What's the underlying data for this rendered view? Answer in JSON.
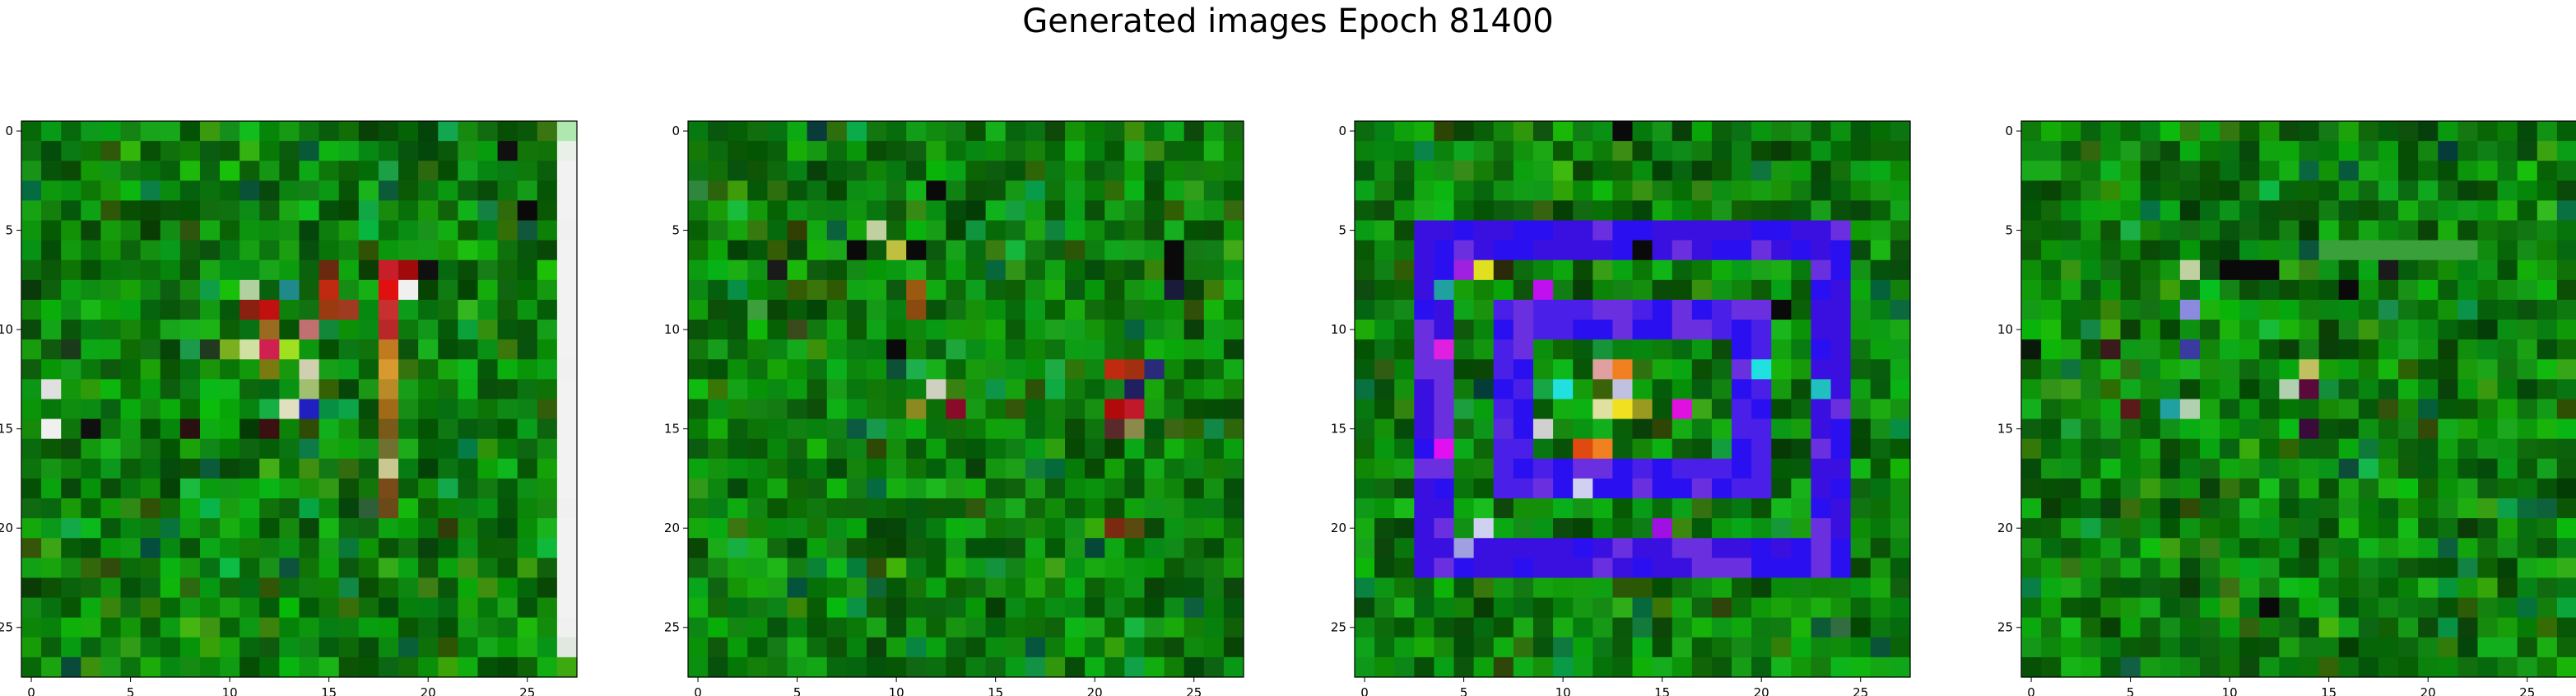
{
  "figure": {
    "title": "Generated images Epoch 81400"
  },
  "chart_data": [
    {
      "type": "heatmap",
      "title": "",
      "xlabel": "",
      "ylabel": "",
      "grid_size": [
        28,
        28
      ],
      "xlim": [
        -0.5,
        27.5
      ],
      "ylim": [
        27.5,
        -0.5
      ],
      "x_ticks": [
        0,
        5,
        10,
        15,
        20,
        25
      ],
      "y_ticks": [
        0,
        5,
        10,
        15,
        20,
        25
      ],
      "grid": false,
      "background": "#127a12",
      "pixels": [
        {
          "x": 27,
          "y": 0,
          "color": "#aee8ae"
        },
        {
          "x": 27,
          "y": 1,
          "color": "#e8f0e8"
        },
        {
          "x": 27,
          "y": 2,
          "color": "#f2f2f2"
        },
        {
          "x": 27,
          "y": 3,
          "color": "#f2f2f2"
        },
        {
          "x": 27,
          "y": 4,
          "color": "#f2f2f2"
        },
        {
          "x": 27,
          "y": 5,
          "color": "#f0f0f0"
        },
        {
          "x": 27,
          "y": 6,
          "color": "#f2f2f2"
        },
        {
          "x": 27,
          "y": 7,
          "color": "#f2f2f2"
        },
        {
          "x": 27,
          "y": 8,
          "color": "#f2f2f2"
        },
        {
          "x": 27,
          "y": 9,
          "color": "#f2f2f2"
        },
        {
          "x": 27,
          "y": 10,
          "color": "#f2f2f2"
        },
        {
          "x": 27,
          "y": 11,
          "color": "#f2f2f2"
        },
        {
          "x": 27,
          "y": 12,
          "color": "#f0f0f0"
        },
        {
          "x": 27,
          "y": 13,
          "color": "#f2f2f2"
        },
        {
          "x": 27,
          "y": 14,
          "color": "#f2f2f2"
        },
        {
          "x": 27,
          "y": 15,
          "color": "#f2f2f2"
        },
        {
          "x": 27,
          "y": 16,
          "color": "#f2f2f2"
        },
        {
          "x": 27,
          "y": 17,
          "color": "#f2f2f2"
        },
        {
          "x": 27,
          "y": 18,
          "color": "#f2f2f2"
        },
        {
          "x": 27,
          "y": 19,
          "color": "#f0f0f0"
        },
        {
          "x": 27,
          "y": 20,
          "color": "#f2f2f2"
        },
        {
          "x": 27,
          "y": 21,
          "color": "#f2f2f2"
        },
        {
          "x": 27,
          "y": 22,
          "color": "#f2f2f2"
        },
        {
          "x": 27,
          "y": 23,
          "color": "#f2f2f2"
        },
        {
          "x": 27,
          "y": 24,
          "color": "#f2f2f2"
        },
        {
          "x": 27,
          "y": 25,
          "color": "#f0f0f0"
        },
        {
          "x": 27,
          "y": 26,
          "color": "#e0e8e0"
        },
        {
          "x": 18,
          "y": 7,
          "color": "#c81e2a"
        },
        {
          "x": 18,
          "y": 8,
          "color": "#e01010"
        },
        {
          "x": 18,
          "y": 9,
          "color": "#c83030"
        },
        {
          "x": 18,
          "y": 10,
          "color": "#b82828"
        },
        {
          "x": 18,
          "y": 11,
          "color": "#c07a20"
        },
        {
          "x": 18,
          "y": 12,
          "color": "#d89a30"
        },
        {
          "x": 18,
          "y": 13,
          "color": "#b88a28"
        },
        {
          "x": 18,
          "y": 14,
          "color": "#a06a18"
        },
        {
          "x": 18,
          "y": 15,
          "color": "#7a5a18"
        },
        {
          "x": 18,
          "y": 16,
          "color": "#707030"
        },
        {
          "x": 18,
          "y": 17,
          "color": "#c8c890"
        },
        {
          "x": 18,
          "y": 18,
          "color": "#7a4a18"
        },
        {
          "x": 18,
          "y": 19,
          "color": "#6a4a18"
        },
        {
          "x": 19,
          "y": 7,
          "color": "#a00a0a"
        },
        {
          "x": 19,
          "y": 8,
          "color": "#f0f0f0"
        },
        {
          "x": 20,
          "y": 7,
          "color": "#101010"
        },
        {
          "x": 12,
          "y": 9,
          "color": "#c01010"
        },
        {
          "x": 12,
          "y": 10,
          "color": "#9a6a20"
        },
        {
          "x": 12,
          "y": 11,
          "color": "#d02050"
        },
        {
          "x": 12,
          "y": 12,
          "color": "#7a7a10"
        },
        {
          "x": 11,
          "y": 9,
          "color": "#8a2010"
        },
        {
          "x": 13,
          "y": 8,
          "color": "#208a8a"
        },
        {
          "x": 13,
          "y": 11,
          "color": "#a0e020"
        },
        {
          "x": 14,
          "y": 10,
          "color": "#c07070"
        },
        {
          "x": 14,
          "y": 12,
          "color": "#d0d0b0"
        },
        {
          "x": 14,
          "y": 13,
          "color": "#a0c070"
        },
        {
          "x": 14,
          "y": 14,
          "color": "#2020c0"
        },
        {
          "x": 13,
          "y": 14,
          "color": "#e0e0c0"
        },
        {
          "x": 15,
          "y": 8,
          "color": "#c02a10"
        },
        {
          "x": 15,
          "y": 9,
          "color": "#9a3a10"
        },
        {
          "x": 16,
          "y": 9,
          "color": "#a03a20"
        },
        {
          "x": 15,
          "y": 7,
          "color": "#6a2a10"
        },
        {
          "x": 11,
          "y": 11,
          "color": "#d0e0a0"
        },
        {
          "x": 10,
          "y": 11,
          "color": "#7ab020"
        },
        {
          "x": 9,
          "y": 11,
          "color": "#203a20"
        },
        {
          "x": 8,
          "y": 11,
          "color": "#1a9a4a"
        },
        {
          "x": 1,
          "y": 13,
          "color": "#e0e0e0"
        },
        {
          "x": 3,
          "y": 15,
          "color": "#101010"
        },
        {
          "x": 1,
          "y": 15,
          "color": "#f0f0f0"
        },
        {
          "x": 8,
          "y": 15,
          "color": "#2a1010"
        },
        {
          "x": 12,
          "y": 15,
          "color": "#3a1010"
        },
        {
          "x": 24,
          "y": 1,
          "color": "#101010"
        },
        {
          "x": 25,
          "y": 4,
          "color": "#0a0a0a"
        },
        {
          "x": 0,
          "y": 8,
          "color": "#0a3a0a"
        },
        {
          "x": 2,
          "y": 11,
          "color": "#1a3a1a"
        },
        {
          "x": 11,
          "y": 8,
          "color": "#b0d0a0"
        }
      ]
    },
    {
      "type": "heatmap",
      "title": "",
      "xlabel": "",
      "ylabel": "",
      "grid_size": [
        28,
        28
      ],
      "xlim": [
        -0.5,
        27.5
      ],
      "ylim": [
        27.5,
        -0.5
      ],
      "x_ticks": [
        0,
        5,
        10,
        15,
        20,
        25
      ],
      "y_ticks": [
        0,
        5,
        10,
        15,
        20,
        25
      ],
      "grid": false,
      "background": "#127a12",
      "pixels": [
        {
          "x": 9,
          "y": 5,
          "color": "#c0d0a0"
        },
        {
          "x": 10,
          "y": 6,
          "color": "#c0c040"
        },
        {
          "x": 8,
          "y": 6,
          "color": "#0a0a0a"
        },
        {
          "x": 11,
          "y": 6,
          "color": "#0a0a0a"
        },
        {
          "x": 11,
          "y": 8,
          "color": "#9a5a10"
        },
        {
          "x": 11,
          "y": 9,
          "color": "#8a4a10"
        },
        {
          "x": 10,
          "y": 11,
          "color": "#0a0a0a"
        },
        {
          "x": 12,
          "y": 13,
          "color": "#d0d0c0"
        },
        {
          "x": 13,
          "y": 14,
          "color": "#8a0a2a"
        },
        {
          "x": 11,
          "y": 14,
          "color": "#8a8a20"
        },
        {
          "x": 21,
          "y": 12,
          "color": "#c02a10"
        },
        {
          "x": 22,
          "y": 12,
          "color": "#a03010"
        },
        {
          "x": 21,
          "y": 14,
          "color": "#b00a0a"
        },
        {
          "x": 22,
          "y": 14,
          "color": "#c01a2a"
        },
        {
          "x": 22,
          "y": 13,
          "color": "#202060"
        },
        {
          "x": 21,
          "y": 15,
          "color": "#5a2a2a"
        },
        {
          "x": 22,
          "y": 15,
          "color": "#8a8a4a"
        },
        {
          "x": 23,
          "y": 12,
          "color": "#2a2a7a"
        },
        {
          "x": 24,
          "y": 6,
          "color": "#0a0a0a"
        },
        {
          "x": 24,
          "y": 7,
          "color": "#0a0a0a"
        },
        {
          "x": 24,
          "y": 8,
          "color": "#1a1a3a"
        },
        {
          "x": 12,
          "y": 3,
          "color": "#0a0a0a"
        },
        {
          "x": 21,
          "y": 20,
          "color": "#7a2a10"
        },
        {
          "x": 22,
          "y": 20,
          "color": "#5a4a10"
        },
        {
          "x": 5,
          "y": 10,
          "color": "#3a4a1a"
        },
        {
          "x": 4,
          "y": 7,
          "color": "#1a1a1a"
        }
      ]
    },
    {
      "type": "heatmap",
      "title": "",
      "xlabel": "",
      "ylabel": "",
      "grid_size": [
        28,
        28
      ],
      "xlim": [
        -0.5,
        27.5
      ],
      "ylim": [
        27.5,
        -0.5
      ],
      "x_ticks": [
        0,
        5,
        10,
        15,
        20,
        25
      ],
      "y_ticks": [
        0,
        5,
        10,
        15,
        20,
        25
      ],
      "grid": false,
      "background": "#127a12",
      "blue_frames": [
        {
          "x0": 3,
          "y0": 5,
          "x1": 24,
          "y1": 22,
          "thickness": 2,
          "color": "#3a10e0"
        },
        {
          "x0": 7,
          "y0": 9,
          "x1": 20,
          "y1": 18,
          "thickness": 2,
          "color": "#4a20e8"
        }
      ],
      "pixels": [
        {
          "x": 6,
          "y": 7,
          "color": "#e0e020"
        },
        {
          "x": 7,
          "y": 7,
          "color": "#2a2a0a"
        },
        {
          "x": 5,
          "y": 7,
          "color": "#a020e0"
        },
        {
          "x": 4,
          "y": 8,
          "color": "#20a0a0"
        },
        {
          "x": 4,
          "y": 11,
          "color": "#e020e0"
        },
        {
          "x": 4,
          "y": 16,
          "color": "#e010f0"
        },
        {
          "x": 9,
          "y": 15,
          "color": "#d0d0d0"
        },
        {
          "x": 7,
          "y": 15,
          "color": "#5a2ae0"
        },
        {
          "x": 12,
          "y": 12,
          "color": "#e0a0a0"
        },
        {
          "x": 13,
          "y": 12,
          "color": "#f08020"
        },
        {
          "x": 12,
          "y": 14,
          "color": "#e0e0a0"
        },
        {
          "x": 13,
          "y": 14,
          "color": "#f0e020"
        },
        {
          "x": 12,
          "y": 16,
          "color": "#f08020"
        },
        {
          "x": 11,
          "y": 16,
          "color": "#e04a10"
        },
        {
          "x": 13,
          "y": 13,
          "color": "#c0c0e0"
        },
        {
          "x": 14,
          "y": 14,
          "color": "#9a9a20"
        },
        {
          "x": 10,
          "y": 13,
          "color": "#20e0e0"
        },
        {
          "x": 5,
          "y": 21,
          "color": "#a0a0e0"
        },
        {
          "x": 6,
          "y": 20,
          "color": "#d0d0f0"
        },
        {
          "x": 9,
          "y": 8,
          "color": "#c010f0"
        },
        {
          "x": 16,
          "y": 14,
          "color": "#e010e0"
        },
        {
          "x": 20,
          "y": 12,
          "color": "#20e0e0"
        },
        {
          "x": 23,
          "y": 13,
          "color": "#20c0c0"
        },
        {
          "x": 11,
          "y": 18,
          "color": "#d0d0f0"
        },
        {
          "x": 15,
          "y": 20,
          "color": "#a010e0"
        },
        {
          "x": 21,
          "y": 9,
          "color": "#0a0a0a"
        },
        {
          "x": 13,
          "y": 0,
          "color": "#0a0a0a"
        },
        {
          "x": 14,
          "y": 6,
          "color": "#0a0a0a"
        }
      ]
    },
    {
      "type": "heatmap",
      "title": "",
      "xlabel": "",
      "ylabel": "",
      "grid_size": [
        28,
        28
      ],
      "xlim": [
        -0.5,
        27.5
      ],
      "ylim": [
        27.5,
        -0.5
      ],
      "x_ticks": [
        0,
        5,
        10,
        15,
        20,
        25
      ],
      "y_ticks": [
        0,
        5,
        10,
        15,
        20,
        25
      ],
      "grid": false,
      "background": "#127a12",
      "pixels": [
        {
          "x": 8,
          "y": 7,
          "color": "#c0d0a0"
        },
        {
          "x": 10,
          "y": 7,
          "color": "#0a0a0a"
        },
        {
          "x": 11,
          "y": 7,
          "color": "#0a0a0a"
        },
        {
          "x": 12,
          "y": 7,
          "color": "#0a0a0a"
        },
        {
          "x": 8,
          "y": 9,
          "color": "#8a8ae0"
        },
        {
          "x": 8,
          "y": 11,
          "color": "#3a3aa0"
        },
        {
          "x": 8,
          "y": 14,
          "color": "#b0d0b0"
        },
        {
          "x": 7,
          "y": 14,
          "color": "#20a0a0"
        },
        {
          "x": 13,
          "y": 13,
          "color": "#b0d0b0"
        },
        {
          "x": 14,
          "y": 13,
          "color": "#5a0a3a"
        },
        {
          "x": 14,
          "y": 12,
          "color": "#c0c060"
        },
        {
          "x": 16,
          "y": 8,
          "color": "#0a0a0a"
        },
        {
          "x": 15,
          "y": 6,
          "color": "#3aa03a"
        },
        {
          "x": 16,
          "y": 6,
          "color": "#3aa03a"
        },
        {
          "x": 17,
          "y": 6,
          "color": "#3aa03a"
        },
        {
          "x": 18,
          "y": 6,
          "color": "#3aa03a"
        },
        {
          "x": 19,
          "y": 6,
          "color": "#3aa03a"
        },
        {
          "x": 20,
          "y": 6,
          "color": "#3aa03a"
        },
        {
          "x": 21,
          "y": 6,
          "color": "#3aa03a"
        },
        {
          "x": 22,
          "y": 6,
          "color": "#3aa03a"
        },
        {
          "x": 5,
          "y": 14,
          "color": "#5a1a1a"
        },
        {
          "x": 4,
          "y": 11,
          "color": "#3a1a1a"
        },
        {
          "x": 0,
          "y": 11,
          "color": "#0a1a0a"
        },
        {
          "x": 12,
          "y": 24,
          "color": "#0a0a0a"
        },
        {
          "x": 14,
          "y": 15,
          "color": "#3a0a3a"
        },
        {
          "x": 18,
          "y": 7,
          "color": "#1a1a1a"
        }
      ]
    }
  ]
}
